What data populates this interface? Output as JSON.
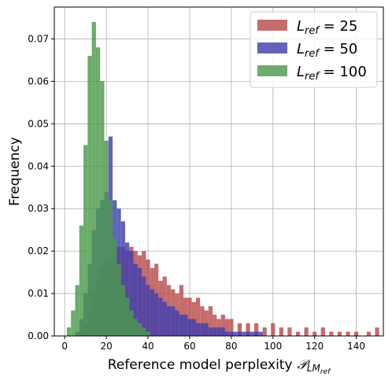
{
  "chart_data": {
    "type": "histogram",
    "xlabel": "Reference model perplexity",
    "xlabel_symbol": "𝒫",
    "xlabel_symbol_sub": "LM",
    "xlabel_symbol_subsub": "ref",
    "ylabel": "Frequency",
    "xlim": [
      -5,
      153
    ],
    "ylim": [
      0,
      0.0775
    ],
    "xticks": [
      "0",
      "20",
      "40",
      "60",
      "80",
      "100",
      "120",
      "140"
    ],
    "xtick_values": [
      0,
      20,
      40,
      60,
      80,
      100,
      120,
      140
    ],
    "yticks": [
      "0.00",
      "0.01",
      "0.02",
      "0.03",
      "0.04",
      "0.05",
      "0.06",
      "0.07"
    ],
    "ytick_values": [
      0,
      0.01,
      0.02,
      0.03,
      0.04,
      0.05,
      0.06,
      0.07
    ],
    "grid": true,
    "legend_position": "top-right",
    "series": [
      {
        "name": "L_ref = 25",
        "legend_main": "L",
        "legend_sub": "ref",
        "legend_value": " = 25",
        "color": "#b84c4c",
        "x": [
          8,
          10,
          12,
          14,
          16,
          18,
          20,
          22,
          24,
          26,
          28,
          30,
          32,
          34,
          36,
          38,
          40,
          42,
          44,
          46,
          48,
          50,
          52,
          54,
          56,
          58,
          60,
          62,
          64,
          66,
          68,
          70,
          72,
          74,
          76,
          78,
          80,
          84,
          88,
          92,
          96,
          100,
          104,
          108,
          112,
          116,
          120,
          124,
          128,
          132,
          136,
          140,
          146,
          150
        ],
        "values": [
          0.001,
          0.003,
          0.006,
          0.01,
          0.013,
          0.016,
          0.017,
          0.018,
          0.019,
          0.021,
          0.021,
          0.02,
          0.021,
          0.02,
          0.019,
          0.02,
          0.018,
          0.016,
          0.017,
          0.013,
          0.014,
          0.012,
          0.011,
          0.01,
          0.012,
          0.009,
          0.009,
          0.008,
          0.009,
          0.007,
          0.006,
          0.007,
          0.005,
          0.004,
          0.005,
          0.004,
          0.004,
          0.003,
          0.003,
          0.003,
          0.002,
          0.003,
          0.002,
          0.002,
          0.001,
          0.002,
          0.001,
          0.002,
          0.001,
          0.001,
          0.001,
          0.001,
          0.001,
          0.002
        ]
      },
      {
        "name": "L_ref = 50",
        "legend_main": "L",
        "legend_sub": "ref",
        "legend_value": " = 50",
        "color": "#4040b0",
        "x": [
          6,
          8,
          10,
          12,
          14,
          16,
          18,
          20,
          22,
          24,
          26,
          28,
          30,
          32,
          34,
          36,
          38,
          40,
          42,
          44,
          46,
          48,
          50,
          52,
          54,
          56,
          58,
          60,
          62,
          64,
          66,
          68,
          70,
          72,
          74,
          76,
          78,
          80,
          82,
          84,
          86,
          88,
          90,
          92,
          94
        ],
        "values": [
          0.001,
          0.004,
          0.01,
          0.017,
          0.025,
          0.03,
          0.032,
          0.034,
          0.047,
          0.032,
          0.03,
          0.027,
          0.022,
          0.02,
          0.017,
          0.016,
          0.014,
          0.012,
          0.011,
          0.01,
          0.009,
          0.008,
          0.007,
          0.007,
          0.006,
          0.005,
          0.005,
          0.004,
          0.004,
          0.003,
          0.003,
          0.003,
          0.002,
          0.002,
          0.002,
          0.002,
          0.001,
          0.001,
          0.001,
          0.001,
          0.001,
          0.001,
          0.001,
          0.001,
          0.001
        ]
      },
      {
        "name": "L_ref = 100",
        "legend_main": "L",
        "legend_sub": "ref",
        "legend_value": " = 100",
        "color": "#4c9a4c",
        "x": [
          2,
          4,
          6,
          8,
          10,
          12,
          14,
          16,
          18,
          20,
          22,
          24,
          26,
          28,
          30,
          32,
          34,
          36,
          38,
          40
        ],
        "values": [
          0.002,
          0.006,
          0.012,
          0.026,
          0.045,
          0.066,
          0.074,
          0.068,
          0.06,
          0.046,
          0.032,
          0.023,
          0.017,
          0.012,
          0.009,
          0.006,
          0.004,
          0.003,
          0.002,
          0.001
        ]
      }
    ]
  }
}
